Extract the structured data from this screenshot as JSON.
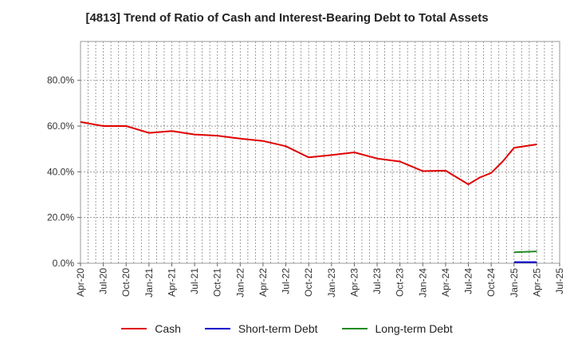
{
  "chart_data": {
    "type": "line",
    "title": "[4813]  Trend of Ratio of Cash and Interest-Bearing Debt to Total Assets",
    "x": [
      "Apr-20",
      "Jul-20",
      "Oct-20",
      "Jan-21",
      "Apr-21",
      "Jul-21",
      "Oct-21",
      "Jan-22",
      "Apr-22",
      "Jul-22",
      "Oct-22",
      "Jan-23",
      "Apr-23",
      "Jul-23",
      "Oct-23",
      "Jan-24",
      "Apr-24",
      "Jul-24",
      "Oct-24",
      "Jan-25",
      "Apr-25",
      "Jul-25"
    ],
    "y_ticks": [
      "0.0%",
      "20.0%",
      "40.0%",
      "60.0%",
      "80.0%"
    ],
    "ylim": [
      0,
      97
    ],
    "grid": true,
    "legend_position": "bottom",
    "series": [
      {
        "name": "Cash",
        "color": "#e00000",
        "values": [
          61.8,
          60.0,
          60.0,
          57.0,
          57.8,
          56.3,
          55.8,
          54.5,
          53.5,
          51.2,
          46.3,
          47.3,
          48.5,
          45.8,
          44.5,
          40.3,
          40.5,
          34.5,
          39.5,
          50.5,
          52.0,
          null
        ],
        "sub_points": [
          [
            17.5,
            37.5
          ],
          [
            18.5,
            44.5
          ]
        ]
      },
      {
        "name": "Short-term Debt",
        "color": "#0000cc",
        "values": [
          null,
          null,
          null,
          null,
          null,
          null,
          null,
          null,
          null,
          null,
          null,
          null,
          null,
          null,
          null,
          null,
          null,
          null,
          null,
          0.5,
          0.5,
          null
        ]
      },
      {
        "name": "Long-term Debt",
        "color": "#228b22",
        "values": [
          null,
          null,
          null,
          null,
          null,
          null,
          null,
          null,
          null,
          null,
          null,
          null,
          null,
          null,
          null,
          null,
          null,
          null,
          null,
          4.8,
          5.2,
          null
        ]
      }
    ]
  }
}
